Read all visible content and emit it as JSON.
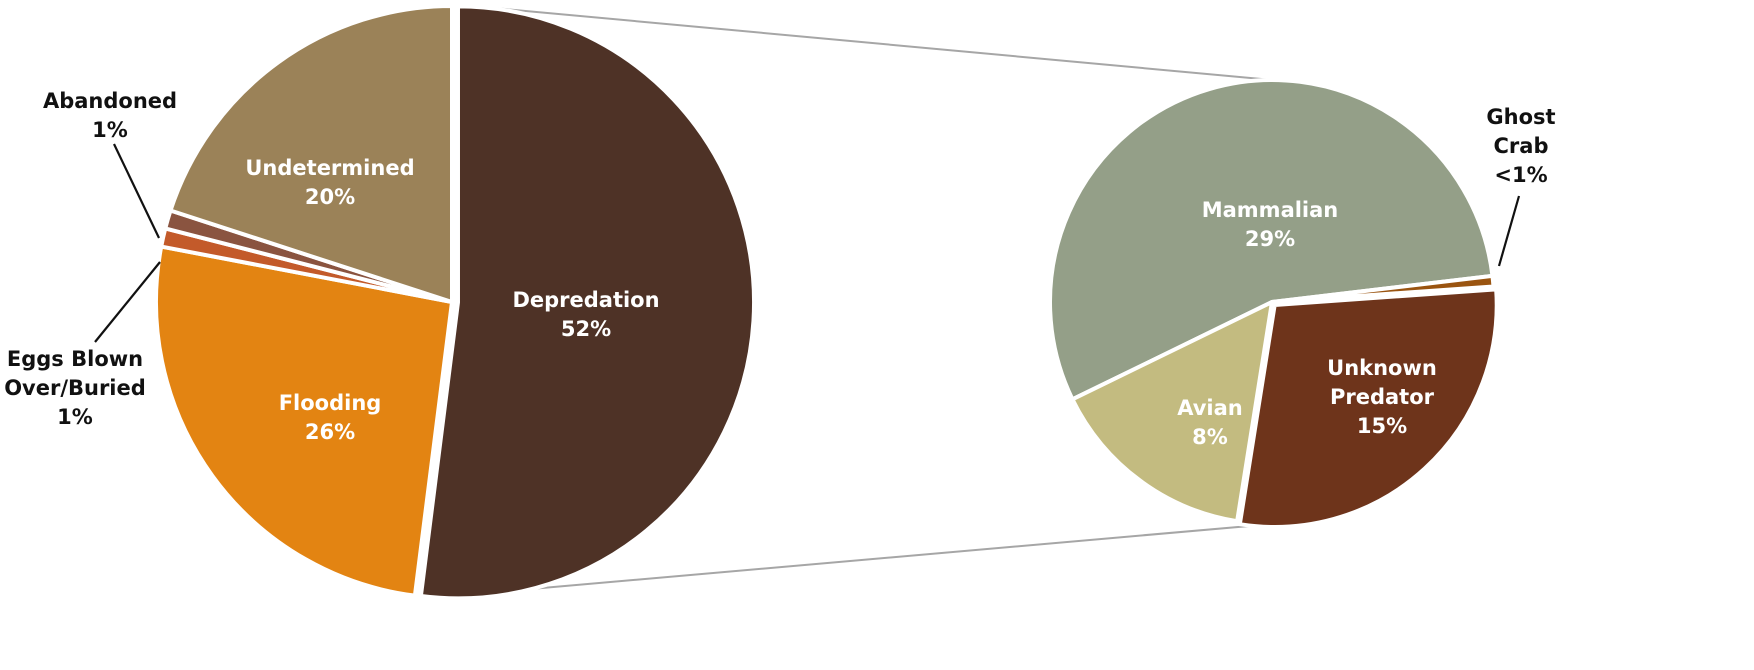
{
  "chart_data": {
    "type": "pie",
    "variant": "pie-of-pie",
    "charts": [
      {
        "role": "primary",
        "slices": [
          {
            "key": "depredation",
            "label": "Depredation",
            "pct_text": "52%",
            "value": 52,
            "color": "#4e3226",
            "label_position": "inside"
          },
          {
            "key": "flooding",
            "label": "Flooding",
            "pct_text": "26%",
            "value": 26,
            "color": "#e38412",
            "label_position": "inside"
          },
          {
            "key": "eggs_blown",
            "label": "Eggs Blown Over/Buried",
            "label_lines": [
              "Eggs Blown",
              "Over/Buried"
            ],
            "pct_text": "1%",
            "value": 1,
            "color": "#c35a2a",
            "label_position": "outside"
          },
          {
            "key": "abandoned",
            "label": "Abandoned",
            "label_lines": [
              "Abandoned"
            ],
            "pct_text": "1%",
            "value": 1,
            "color": "#8a5440",
            "label_position": "outside"
          },
          {
            "key": "undetermined",
            "label": "Undetermined",
            "pct_text": "20%",
            "value": 20,
            "color": "#9b8258",
            "label_position": "inside"
          }
        ],
        "exploded_slice": "depredation"
      },
      {
        "role": "secondary",
        "breakdown_of": "depredation",
        "slices": [
          {
            "key": "mammalian",
            "label": "Mammalian",
            "pct_text": "29%",
            "value": 29,
            "color": "#949f88",
            "label_position": "inside"
          },
          {
            "key": "ghost_crab",
            "label": "Ghost Crab",
            "label_lines": [
              "Ghost",
              "Crab"
            ],
            "pct_text": "<1%",
            "value": 0.4,
            "color": "#9a5410",
            "label_position": "outside"
          },
          {
            "key": "unknown_predator",
            "label": "Unknown Predator",
            "label_lines": [
              "Unknown",
              "Predator"
            ],
            "pct_text": "15%",
            "value": 15,
            "color": "#6e341b",
            "label_position": "inside"
          },
          {
            "key": "avian",
            "label": "Avian",
            "pct_text": "8%",
            "value": 8,
            "color": "#c3bb80",
            "label_position": "inside"
          }
        ]
      }
    ],
    "legend": "none",
    "connector_color": "#a6a6a6"
  }
}
